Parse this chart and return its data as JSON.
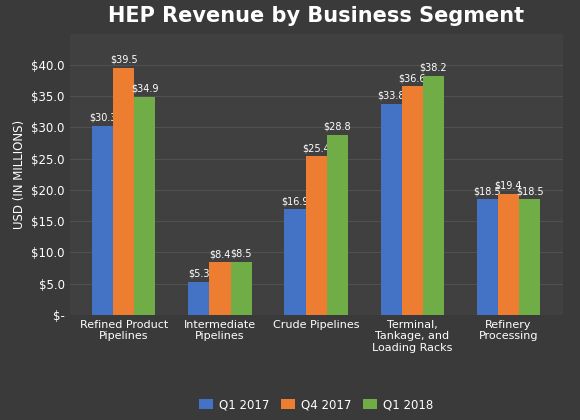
{
  "title": "HEP Revenue by Business Segment",
  "categories": [
    "Refined Product\nPipelines",
    "Intermediate\nPipelines",
    "Crude Pipelines",
    "Terminal,\nTankage, and\nLoading Racks",
    "Refinery\nProcessing"
  ],
  "series": {
    "Q1 2017": [
      30.3,
      5.3,
      16.9,
      33.8,
      18.5
    ],
    "Q4 2017": [
      39.5,
      8.4,
      25.4,
      36.6,
      19.4
    ],
    "Q1 2018": [
      34.9,
      8.5,
      28.8,
      38.2,
      18.5
    ]
  },
  "colors": {
    "Q1 2017": "#4472C4",
    "Q4 2017": "#ED7D31",
    "Q1 2018": "#70AD47"
  },
  "ylabel": "USD (IN MILLIONS)",
  "ylim": [
    0,
    45
  ],
  "yticks": [
    0,
    5,
    10,
    15,
    20,
    25,
    30,
    35,
    40
  ],
  "ytick_labels": [
    "$-",
    "$5.0",
    "$10.0",
    "$15.0",
    "$20.0",
    "$25.0",
    "$30.0",
    "$35.0",
    "$40.0"
  ],
  "outer_bg": "#3a3a3a",
  "plot_bg_color": "#404040",
  "text_color": "#ffffff",
  "grid_color": "#555555",
  "bar_width": 0.22,
  "title_fontsize": 15,
  "label_fontsize": 8,
  "axis_fontsize": 8.5,
  "annotation_fontsize": 7,
  "legend_labels": [
    "Q1 2017",
    "Q4 2017",
    "Q1 2018"
  ]
}
